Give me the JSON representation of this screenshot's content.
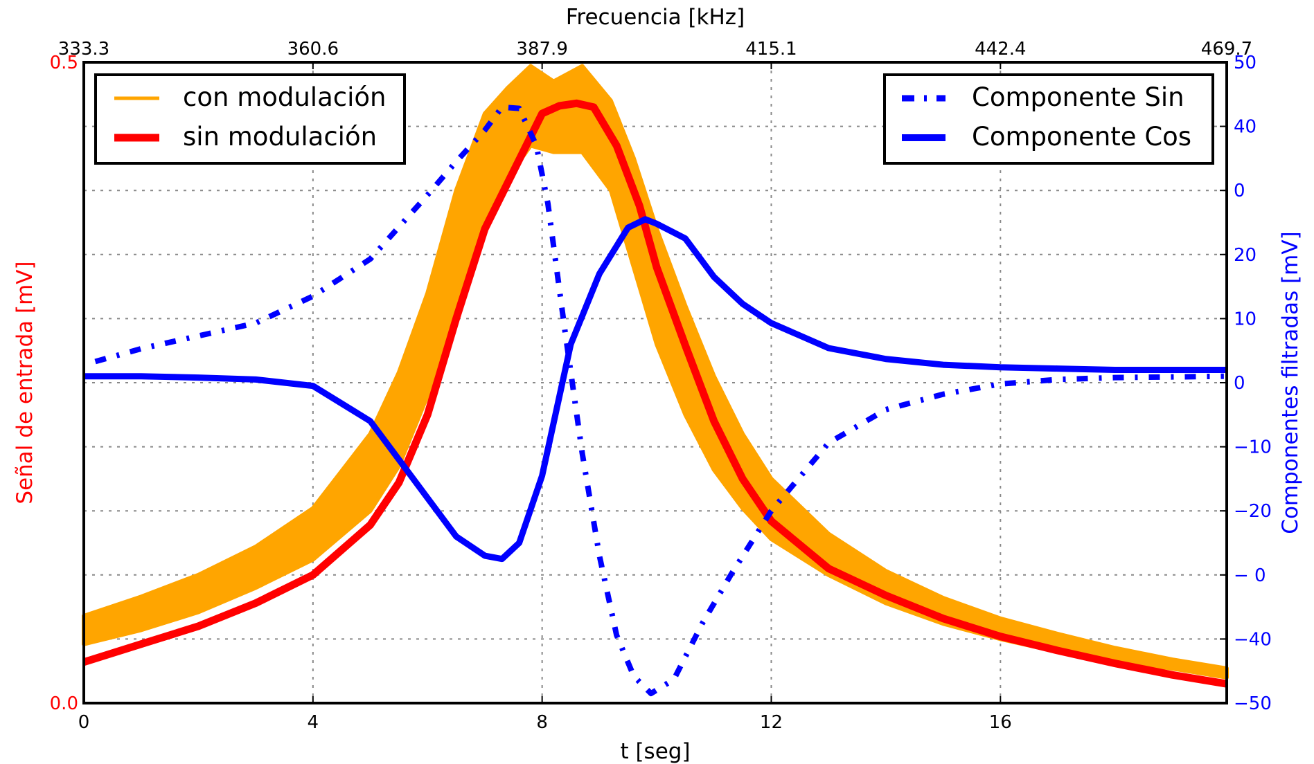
{
  "chart_data": {
    "type": "line",
    "title": "",
    "xlabel": "t [seg]",
    "xlim": [
      0,
      19.95
    ],
    "xticks": [
      0,
      4,
      8,
      12,
      16
    ],
    "xtick_labels": [
      "0",
      "4",
      "8",
      "12",
      "16"
    ],
    "top_axis": {
      "label": "Frecuencia [kHz]",
      "ticks": [
        0,
        4,
        8,
        12,
        16,
        19.95
      ],
      "tick_labels": [
        "333.3",
        "360.6",
        "387.9",
        "415.1",
        "442.4",
        "469.7"
      ]
    },
    "left_axis": {
      "label": "Señal de entrada [mV]",
      "color": "#ff0000",
      "ylim": [
        0.0,
        0.5
      ],
      "ticks": [
        0.0,
        0.5
      ],
      "tick_labels": [
        "0.0",
        "0.5"
      ]
    },
    "right_axis": {
      "label": "Componentes filtradas [mV]",
      "color": "#0000ff",
      "tick_labels": [
        "50",
        "40",
        "0",
        "20",
        "10",
        "0",
        "−10",
        "−20",
        "− 0",
        "−40",
        "−50"
      ],
      "ylim": [
        -50,
        50
      ]
    },
    "grid": true,
    "legends": [
      {
        "position": "top-left",
        "entries": [
          "con modulación",
          "sin modulación"
        ]
      },
      {
        "position": "top-right",
        "entries": [
          "Componente Sin",
          "Componente Cos"
        ]
      }
    ],
    "series": [
      {
        "name": "con modulación",
        "axis": "left",
        "color": "#ffa500",
        "style": "band",
        "x": [
          0,
          1,
          2,
          3,
          4,
          5,
          5.5,
          6,
          6.5,
          7,
          7.4,
          7.8,
          8.2,
          8.7,
          9.2,
          9.6,
          10,
          10.5,
          11,
          11.5,
          12,
          13,
          14,
          15,
          16,
          17,
          18,
          19,
          19.95
        ],
        "upper": [
          0.068,
          0.083,
          0.1,
          0.122,
          0.152,
          0.21,
          0.258,
          0.32,
          0.4,
          0.46,
          0.48,
          0.497,
          0.485,
          0.497,
          0.47,
          0.425,
          0.37,
          0.31,
          0.255,
          0.21,
          0.175,
          0.132,
          0.103,
          0.082,
          0.066,
          0.054,
          0.043,
          0.034,
          0.027
        ],
        "lower": [
          0.046,
          0.057,
          0.071,
          0.09,
          0.112,
          0.15,
          0.185,
          0.24,
          0.305,
          0.37,
          0.41,
          0.435,
          0.43,
          0.43,
          0.4,
          0.34,
          0.28,
          0.225,
          0.182,
          0.152,
          0.128,
          0.1,
          0.078,
          0.062,
          0.05,
          0.04,
          0.033,
          0.027,
          0.02
        ]
      },
      {
        "name": "sin modulación",
        "axis": "left",
        "color": "#ff0000",
        "x": [
          0,
          1,
          2,
          3,
          4,
          5,
          5.5,
          6,
          6.5,
          7,
          7.5,
          8,
          8.3,
          8.6,
          8.9,
          9.3,
          9.7,
          10,
          10.5,
          11,
          11.5,
          12,
          13,
          14,
          15,
          16,
          17,
          18,
          19,
          19.95
        ],
        "values": [
          0.032,
          0.046,
          0.06,
          0.078,
          0.1,
          0.139,
          0.172,
          0.225,
          0.3,
          0.37,
          0.415,
          0.46,
          0.466,
          0.468,
          0.465,
          0.435,
          0.388,
          0.34,
          0.279,
          0.22,
          0.175,
          0.142,
          0.105,
          0.084,
          0.066,
          0.052,
          0.041,
          0.031,
          0.022,
          0.015
        ]
      },
      {
        "name": "Componente Sin",
        "axis": "right",
        "color": "#0000ff",
        "style": "dashed",
        "x": [
          0.2,
          1,
          2,
          3,
          4,
          5,
          6,
          6.5,
          7,
          7.3,
          7.6,
          7.9,
          8.1,
          8.4,
          8.7,
          9,
          9.3,
          9.6,
          9.9,
          10.3,
          10.8,
          11.3,
          12,
          13,
          14,
          15,
          16,
          17,
          18,
          19,
          19.9
        ],
        "values": [
          3.3,
          5.3,
          7.3,
          9.3,
          13.5,
          19.3,
          29.3,
          34.5,
          39.4,
          43,
          42.8,
          37,
          28,
          8,
          -11,
          -27,
          -39.4,
          -45.8,
          -48.5,
          -46.3,
          -37.5,
          -29.9,
          -20,
          -9.4,
          -4.2,
          -1.8,
          -0.2,
          0.5,
          0.8,
          0.9,
          1
        ]
      },
      {
        "name": "Componente Cos",
        "axis": "right",
        "color": "#0000ff",
        "x": [
          0,
          1,
          2,
          3,
          4,
          5,
          5.5,
          6,
          6.5,
          7,
          7.3,
          7.6,
          8,
          8.5,
          9,
          9.5,
          9.8,
          10,
          10.5,
          11,
          11.5,
          12,
          13,
          14,
          15,
          16,
          17,
          18,
          19,
          19.95
        ],
        "values": [
          1,
          1,
          0.8,
          0.5,
          -0.5,
          -6,
          -12,
          -18,
          -24,
          -27,
          -27.5,
          -25,
          -14.5,
          6,
          17,
          24.2,
          25.5,
          24.8,
          22.5,
          16.5,
          12.3,
          9.3,
          5.4,
          3.7,
          2.8,
          2.4,
          2.2,
          2,
          2,
          2
        ]
      }
    ]
  }
}
